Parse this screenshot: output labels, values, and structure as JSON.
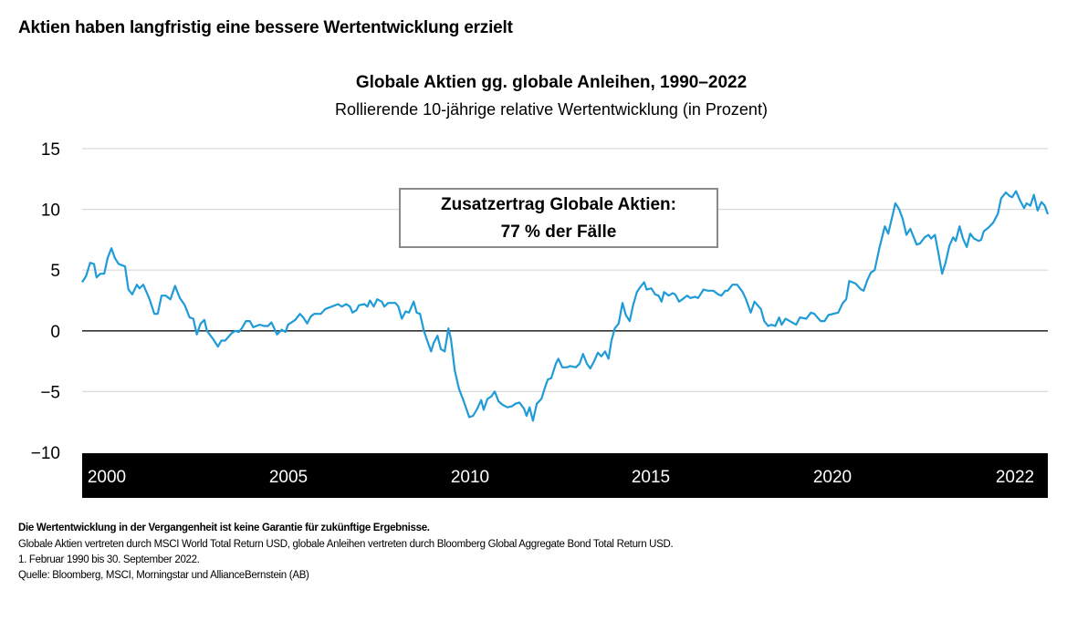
{
  "page_title": "Aktien haben langfristig eine bessere Wertentwicklung erzielt",
  "chart_data": {
    "type": "line",
    "title": "Globale Aktien gg. globale Anleihen, 1990–2022",
    "subtitle": "Rollierende 10-jährige relative Wertentwicklung (in Prozent)",
    "xlabel": "",
    "ylabel": "",
    "xlim": [
      2000,
      2022.75
    ],
    "ylim": [
      -10,
      15
    ],
    "yticks": [
      15,
      10,
      5,
      0,
      -5,
      -10
    ],
    "ytick_labels": [
      "15",
      "10",
      "5",
      "0",
      "−5",
      "−10"
    ],
    "xtick_labels": [
      "2000",
      "2005",
      "2010",
      "2015",
      "2020",
      "2022"
    ],
    "grid": "horizontal",
    "zero_line": true,
    "line_color": "#1f9bd7",
    "annotation": {
      "line1": "Zusatzertrag Globale Aktien:",
      "line2": "77 % der Fälle"
    },
    "series": [
      {
        "points": [
          [
            2000.0,
            4.0
          ],
          [
            2000.09,
            4.5
          ],
          [
            2000.19,
            5.6
          ],
          [
            2000.28,
            5.5
          ],
          [
            2000.34,
            4.4
          ],
          [
            2000.43,
            4.7
          ],
          [
            2000.52,
            4.7
          ],
          [
            2000.6,
            6.0
          ],
          [
            2000.69,
            6.8
          ],
          [
            2000.77,
            6.0
          ],
          [
            2000.86,
            5.5
          ],
          [
            2001.01,
            5.3
          ],
          [
            2001.09,
            3.4
          ],
          [
            2001.18,
            3.0
          ],
          [
            2001.29,
            3.8
          ],
          [
            2001.35,
            3.5
          ],
          [
            2001.44,
            3.8
          ],
          [
            2001.59,
            2.6
          ],
          [
            2001.7,
            1.4
          ],
          [
            2001.78,
            1.4
          ],
          [
            2001.87,
            2.9
          ],
          [
            2001.97,
            2.9
          ],
          [
            2002.08,
            2.6
          ],
          [
            2002.19,
            3.7
          ],
          [
            2002.3,
            2.7
          ],
          [
            2002.42,
            2.1
          ],
          [
            2002.53,
            1.1
          ],
          [
            2002.62,
            1.0
          ],
          [
            2002.7,
            -0.3
          ],
          [
            2002.79,
            0.6
          ],
          [
            2002.88,
            0.9
          ],
          [
            2002.94,
            0.0
          ],
          [
            2003.09,
            -0.7
          ],
          [
            2003.2,
            -1.3
          ],
          [
            2003.28,
            -0.8
          ],
          [
            2003.37,
            -0.8
          ],
          [
            2003.52,
            -0.2
          ],
          [
            2003.61,
            0.0
          ],
          [
            2003.69,
            -0.1
          ],
          [
            2003.76,
            0.2
          ],
          [
            2003.86,
            0.8
          ],
          [
            2003.95,
            0.8
          ],
          [
            2004.03,
            0.3
          ],
          [
            2004.18,
            0.5
          ],
          [
            2004.29,
            0.4
          ],
          [
            2004.38,
            0.4
          ],
          [
            2004.46,
            0.7
          ],
          [
            2004.59,
            -0.3
          ],
          [
            2004.7,
            0.1
          ],
          [
            2004.79,
            -0.1
          ],
          [
            2004.85,
            0.5
          ],
          [
            2005.02,
            0.9
          ],
          [
            2005.13,
            1.4
          ],
          [
            2005.21,
            1.1
          ],
          [
            2005.3,
            0.6
          ],
          [
            2005.39,
            1.2
          ],
          [
            2005.47,
            1.4
          ],
          [
            2005.62,
            1.4
          ],
          [
            2005.73,
            1.8
          ],
          [
            2005.88,
            2.0
          ],
          [
            2006.03,
            2.2
          ],
          [
            2006.12,
            2.0
          ],
          [
            2006.22,
            2.2
          ],
          [
            2006.31,
            2.0
          ],
          [
            2006.37,
            1.5
          ],
          [
            2006.46,
            1.7
          ],
          [
            2006.52,
            2.1
          ],
          [
            2006.65,
            2.2
          ],
          [
            2006.72,
            2.0
          ],
          [
            2006.78,
            2.5
          ],
          [
            2006.87,
            2.0
          ],
          [
            2006.95,
            2.6
          ],
          [
            2007.06,
            2.4
          ],
          [
            2007.12,
            2.0
          ],
          [
            2007.21,
            2.3
          ],
          [
            2007.38,
            2.3
          ],
          [
            2007.45,
            2.0
          ],
          [
            2007.53,
            1.0
          ],
          [
            2007.62,
            1.6
          ],
          [
            2007.7,
            1.5
          ],
          [
            2007.81,
            2.4
          ],
          [
            2007.88,
            1.5
          ],
          [
            2007.96,
            1.4
          ],
          [
            2008.05,
            0.0
          ],
          [
            2008.13,
            -0.8
          ],
          [
            2008.22,
            -1.7
          ],
          [
            2008.28,
            -1.0
          ],
          [
            2008.37,
            -0.4
          ],
          [
            2008.45,
            -1.5
          ],
          [
            2008.54,
            -1.7
          ],
          [
            2008.63,
            0.2
          ],
          [
            2008.69,
            -0.7
          ],
          [
            2008.78,
            -3.3
          ],
          [
            2008.88,
            -4.8
          ],
          [
            2008.99,
            -5.8
          ],
          [
            2009.12,
            -7.1
          ],
          [
            2009.21,
            -7.0
          ],
          [
            2009.31,
            -6.4
          ],
          [
            2009.4,
            -5.7
          ],
          [
            2009.46,
            -6.5
          ],
          [
            2009.55,
            -5.6
          ],
          [
            2009.64,
            -5.4
          ],
          [
            2009.72,
            -5.0
          ],
          [
            2009.81,
            -5.8
          ],
          [
            2009.91,
            -6.1
          ],
          [
            2010.02,
            -6.3
          ],
          [
            2010.13,
            -6.2
          ],
          [
            2010.21,
            -6.0
          ],
          [
            2010.3,
            -5.9
          ],
          [
            2010.41,
            -6.4
          ],
          [
            2010.47,
            -7.0
          ],
          [
            2010.54,
            -6.3
          ],
          [
            2010.62,
            -7.4
          ],
          [
            2010.71,
            -6.0
          ],
          [
            2010.82,
            -5.6
          ],
          [
            2010.9,
            -4.7
          ],
          [
            2010.97,
            -4.0
          ],
          [
            2011.05,
            -3.9
          ],
          [
            2011.16,
            -2.7
          ],
          [
            2011.22,
            -2.3
          ],
          [
            2011.31,
            -3.0
          ],
          [
            2011.42,
            -3.0
          ],
          [
            2011.5,
            -2.9
          ],
          [
            2011.63,
            -3.0
          ],
          [
            2011.72,
            -2.7
          ],
          [
            2011.8,
            -1.9
          ],
          [
            2011.89,
            -2.7
          ],
          [
            2011.97,
            -3.1
          ],
          [
            2012.06,
            -2.5
          ],
          [
            2012.15,
            -1.8
          ],
          [
            2012.23,
            -2.1
          ],
          [
            2012.32,
            -1.7
          ],
          [
            2012.4,
            -2.3
          ],
          [
            2012.47,
            -0.8
          ],
          [
            2012.55,
            0.2
          ],
          [
            2012.64,
            0.6
          ],
          [
            2012.73,
            2.3
          ],
          [
            2012.81,
            1.3
          ],
          [
            2012.9,
            0.8
          ],
          [
            2012.98,
            2.1
          ],
          [
            2013.07,
            3.2
          ],
          [
            2013.15,
            3.6
          ],
          [
            2013.24,
            4.0
          ],
          [
            2013.3,
            3.4
          ],
          [
            2013.41,
            3.5
          ],
          [
            2013.5,
            3.0
          ],
          [
            2013.58,
            2.9
          ],
          [
            2013.65,
            2.4
          ],
          [
            2013.71,
            3.2
          ],
          [
            2013.82,
            2.9
          ],
          [
            2013.91,
            3.1
          ],
          [
            2013.97,
            3.0
          ],
          [
            2014.06,
            2.4
          ],
          [
            2014.14,
            2.6
          ],
          [
            2014.25,
            2.9
          ],
          [
            2014.33,
            2.7
          ],
          [
            2014.44,
            2.8
          ],
          [
            2014.51,
            2.7
          ],
          [
            2014.64,
            3.4
          ],
          [
            2014.74,
            3.3
          ],
          [
            2014.87,
            3.3
          ],
          [
            2014.98,
            3.0
          ],
          [
            2015.06,
            2.9
          ],
          [
            2015.15,
            3.3
          ],
          [
            2015.21,
            3.3
          ],
          [
            2015.32,
            3.8
          ],
          [
            2015.43,
            3.8
          ],
          [
            2015.56,
            3.2
          ],
          [
            2015.64,
            2.6
          ],
          [
            2015.75,
            1.5
          ],
          [
            2015.84,
            2.4
          ],
          [
            2015.99,
            1.8
          ],
          [
            2016.07,
            0.8
          ],
          [
            2016.16,
            0.4
          ],
          [
            2016.24,
            0.5
          ],
          [
            2016.33,
            0.4
          ],
          [
            2016.42,
            1.1
          ],
          [
            2016.48,
            0.5
          ],
          [
            2016.57,
            1.0
          ],
          [
            2016.67,
            0.8
          ],
          [
            2016.82,
            0.5
          ],
          [
            2016.91,
            1.1
          ],
          [
            2017.06,
            1.0
          ],
          [
            2017.17,
            1.5
          ],
          [
            2017.25,
            1.4
          ],
          [
            2017.32,
            1.1
          ],
          [
            2017.4,
            0.8
          ],
          [
            2017.49,
            0.8
          ],
          [
            2017.58,
            1.3
          ],
          [
            2017.81,
            1.5
          ],
          [
            2017.92,
            2.3
          ],
          [
            2018.0,
            2.6
          ],
          [
            2018.07,
            4.1
          ],
          [
            2018.22,
            3.9
          ],
          [
            2018.35,
            3.4
          ],
          [
            2018.41,
            3.3
          ],
          [
            2018.5,
            4.2
          ],
          [
            2018.58,
            4.8
          ],
          [
            2018.67,
            5.0
          ],
          [
            2018.78,
            6.8
          ],
          [
            2018.91,
            8.6
          ],
          [
            2018.99,
            8.0
          ],
          [
            2019.16,
            10.5
          ],
          [
            2019.25,
            10.0
          ],
          [
            2019.33,
            9.2
          ],
          [
            2019.42,
            7.9
          ],
          [
            2019.51,
            8.4
          ],
          [
            2019.66,
            7.1
          ],
          [
            2019.74,
            7.2
          ],
          [
            2019.85,
            7.7
          ],
          [
            2019.94,
            7.9
          ],
          [
            2020.0,
            7.6
          ],
          [
            2020.09,
            7.9
          ],
          [
            2020.15,
            6.8
          ],
          [
            2020.26,
            4.7
          ],
          [
            2020.34,
            5.6
          ],
          [
            2020.43,
            7.0
          ],
          [
            2020.52,
            7.7
          ],
          [
            2020.58,
            7.4
          ],
          [
            2020.67,
            8.6
          ],
          [
            2020.75,
            7.6
          ],
          [
            2020.84,
            6.9
          ],
          [
            2020.92,
            8.0
          ],
          [
            2021.01,
            7.6
          ],
          [
            2021.12,
            7.4
          ],
          [
            2021.18,
            7.5
          ],
          [
            2021.24,
            8.2
          ],
          [
            2021.35,
            8.5
          ],
          [
            2021.46,
            8.9
          ],
          [
            2021.57,
            9.6
          ],
          [
            2021.65,
            10.9
          ],
          [
            2021.76,
            11.4
          ],
          [
            2021.85,
            11.1
          ],
          [
            2021.91,
            11.0
          ],
          [
            2022.0,
            11.5
          ],
          [
            2022.1,
            10.7
          ],
          [
            2022.19,
            10.1
          ],
          [
            2022.25,
            10.5
          ],
          [
            2022.34,
            10.3
          ],
          [
            2022.42,
            11.2
          ],
          [
            2022.51,
            9.9
          ],
          [
            2022.6,
            10.6
          ],
          [
            2022.68,
            10.3
          ],
          [
            2022.75,
            9.6
          ]
        ]
      }
    ]
  },
  "footnotes": {
    "disclaimer": "Die Wertentwicklung in der Vergangenheit ist keine Garantie für zukünftige Ergebnisse.",
    "line1": "Globale Aktien vertreten durch MSCI World Total Return USD, globale Anleihen vertreten durch Bloomberg Global Aggregate Bond Total Return USD.",
    "line2": "1. Februar 1990 bis 30. September 2022.",
    "line3": "Quelle: Bloomberg, MSCI, Morningstar und AllianceBernstein (AB)"
  }
}
